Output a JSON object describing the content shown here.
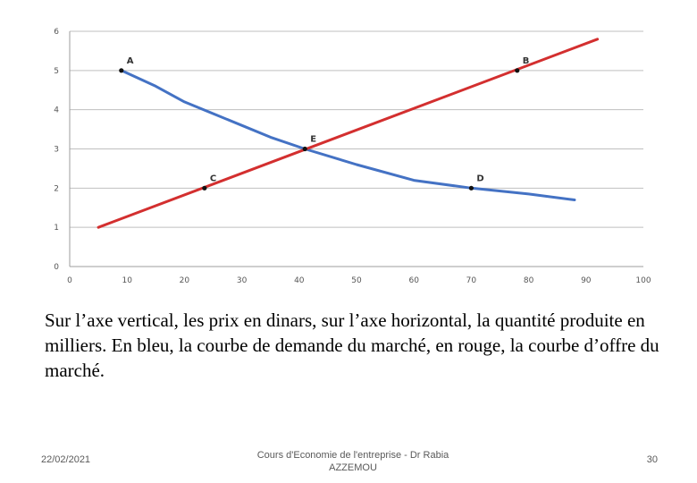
{
  "chart_data": {
    "type": "line",
    "title": "",
    "xlabel": "",
    "ylabel": "",
    "xlim": [
      0,
      100
    ],
    "ylim": [
      0,
      6
    ],
    "x_ticks": [
      "0",
      "10",
      "20",
      "30",
      "40",
      "50",
      "60",
      "70",
      "80",
      "90",
      "100"
    ],
    "y_ticks": [
      "0",
      "1",
      "2",
      "3",
      "4",
      "5",
      "6"
    ],
    "grid": true,
    "series": [
      {
        "name": "Demande",
        "color": "#4472C4",
        "points": [
          [
            9,
            5.0
          ],
          [
            15,
            4.6
          ],
          [
            20,
            4.2
          ],
          [
            30,
            3.6
          ],
          [
            35,
            3.3
          ],
          [
            41,
            3.0
          ],
          [
            50,
            2.6
          ],
          [
            60,
            2.2
          ],
          [
            70,
            2.0
          ],
          [
            80,
            1.85
          ],
          [
            88,
            1.7
          ]
        ]
      },
      {
        "name": "Offre",
        "color": "#D32F2F",
        "points": [
          [
            5,
            1.0
          ],
          [
            92,
            5.8
          ]
        ]
      }
    ],
    "annotations": [
      {
        "label": "A",
        "x": 9,
        "y": 5.0
      },
      {
        "label": "B",
        "x": 78,
        "y": 5.0
      },
      {
        "label": "C",
        "x": 23.5,
        "y": 2.0
      },
      {
        "label": "D",
        "x": 70,
        "y": 2.0
      },
      {
        "label": "E",
        "x": 41,
        "y": 3.0
      }
    ]
  },
  "caption": "Sur l’axe vertical, les prix en dinars, sur l’axe horizontal, la quantité produite en milliers. En bleu, la courbe de demande du marché, en rouge, la courbe d’offre du marché.",
  "footer": {
    "date": "22/02/2021",
    "title": "Cours d'Economie de l'entreprise - Dr Rabia AZZEMOU",
    "page": "30"
  }
}
